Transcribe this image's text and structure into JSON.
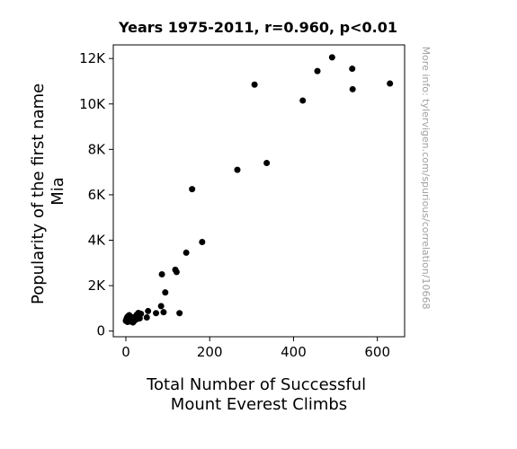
{
  "chart_data": {
    "type": "scatter",
    "title": "Years 1975-2011, r=0.960, p<0.01",
    "xlabel": [
      "Total Number of Successful",
      "Mount Everest Climbs"
    ],
    "ylabel": [
      "Popularity of the first name",
      "Mia"
    ],
    "xlim": [
      -30,
      665
    ],
    "ylim": [
      -250,
      12600
    ],
    "xticks": [
      0,
      200,
      400,
      600
    ],
    "xtick_labels": [
      "0",
      "200",
      "400",
      "600"
    ],
    "yticks": [
      0,
      2000,
      4000,
      6000,
      8000,
      10000,
      12000
    ],
    "ytick_labels": [
      "0",
      "2K",
      "4K",
      "6K",
      "8K",
      "10K",
      "12K"
    ],
    "grid": false,
    "marker_color": "#000000",
    "watermark": "More info: tylervigen.com/spurious/correlation/10668",
    "points": [
      [
        0,
        450
      ],
      [
        1,
        500
      ],
      [
        2,
        550
      ],
      [
        3,
        600
      ],
      [
        4,
        400
      ],
      [
        5,
        650
      ],
      [
        6,
        520
      ],
      [
        7,
        480
      ],
      [
        8,
        700
      ],
      [
        10,
        560
      ],
      [
        12,
        420
      ],
      [
        14,
        610
      ],
      [
        15,
        500
      ],
      [
        17,
        380
      ],
      [
        19,
        550
      ],
      [
        22,
        480
      ],
      [
        24,
        660
      ],
      [
        26,
        720
      ],
      [
        28,
        540
      ],
      [
        30,
        800
      ],
      [
        33,
        560
      ],
      [
        36,
        760
      ],
      [
        50,
        600
      ],
      [
        53,
        880
      ],
      [
        72,
        790
      ],
      [
        84,
        1100
      ],
      [
        86,
        2500
      ],
      [
        90,
        830
      ],
      [
        94,
        1700
      ],
      [
        118,
        2700
      ],
      [
        121,
        2600
      ],
      [
        128,
        790
      ],
      [
        144,
        3450
      ],
      [
        158,
        6250
      ],
      [
        182,
        3920
      ],
      [
        266,
        7100
      ],
      [
        307,
        10850
      ],
      [
        336,
        7400
      ],
      [
        422,
        10150
      ],
      [
        457,
        11450
      ],
      [
        492,
        12050
      ],
      [
        540,
        11550
      ],
      [
        541,
        10650
      ],
      [
        630,
        10900
      ]
    ]
  }
}
